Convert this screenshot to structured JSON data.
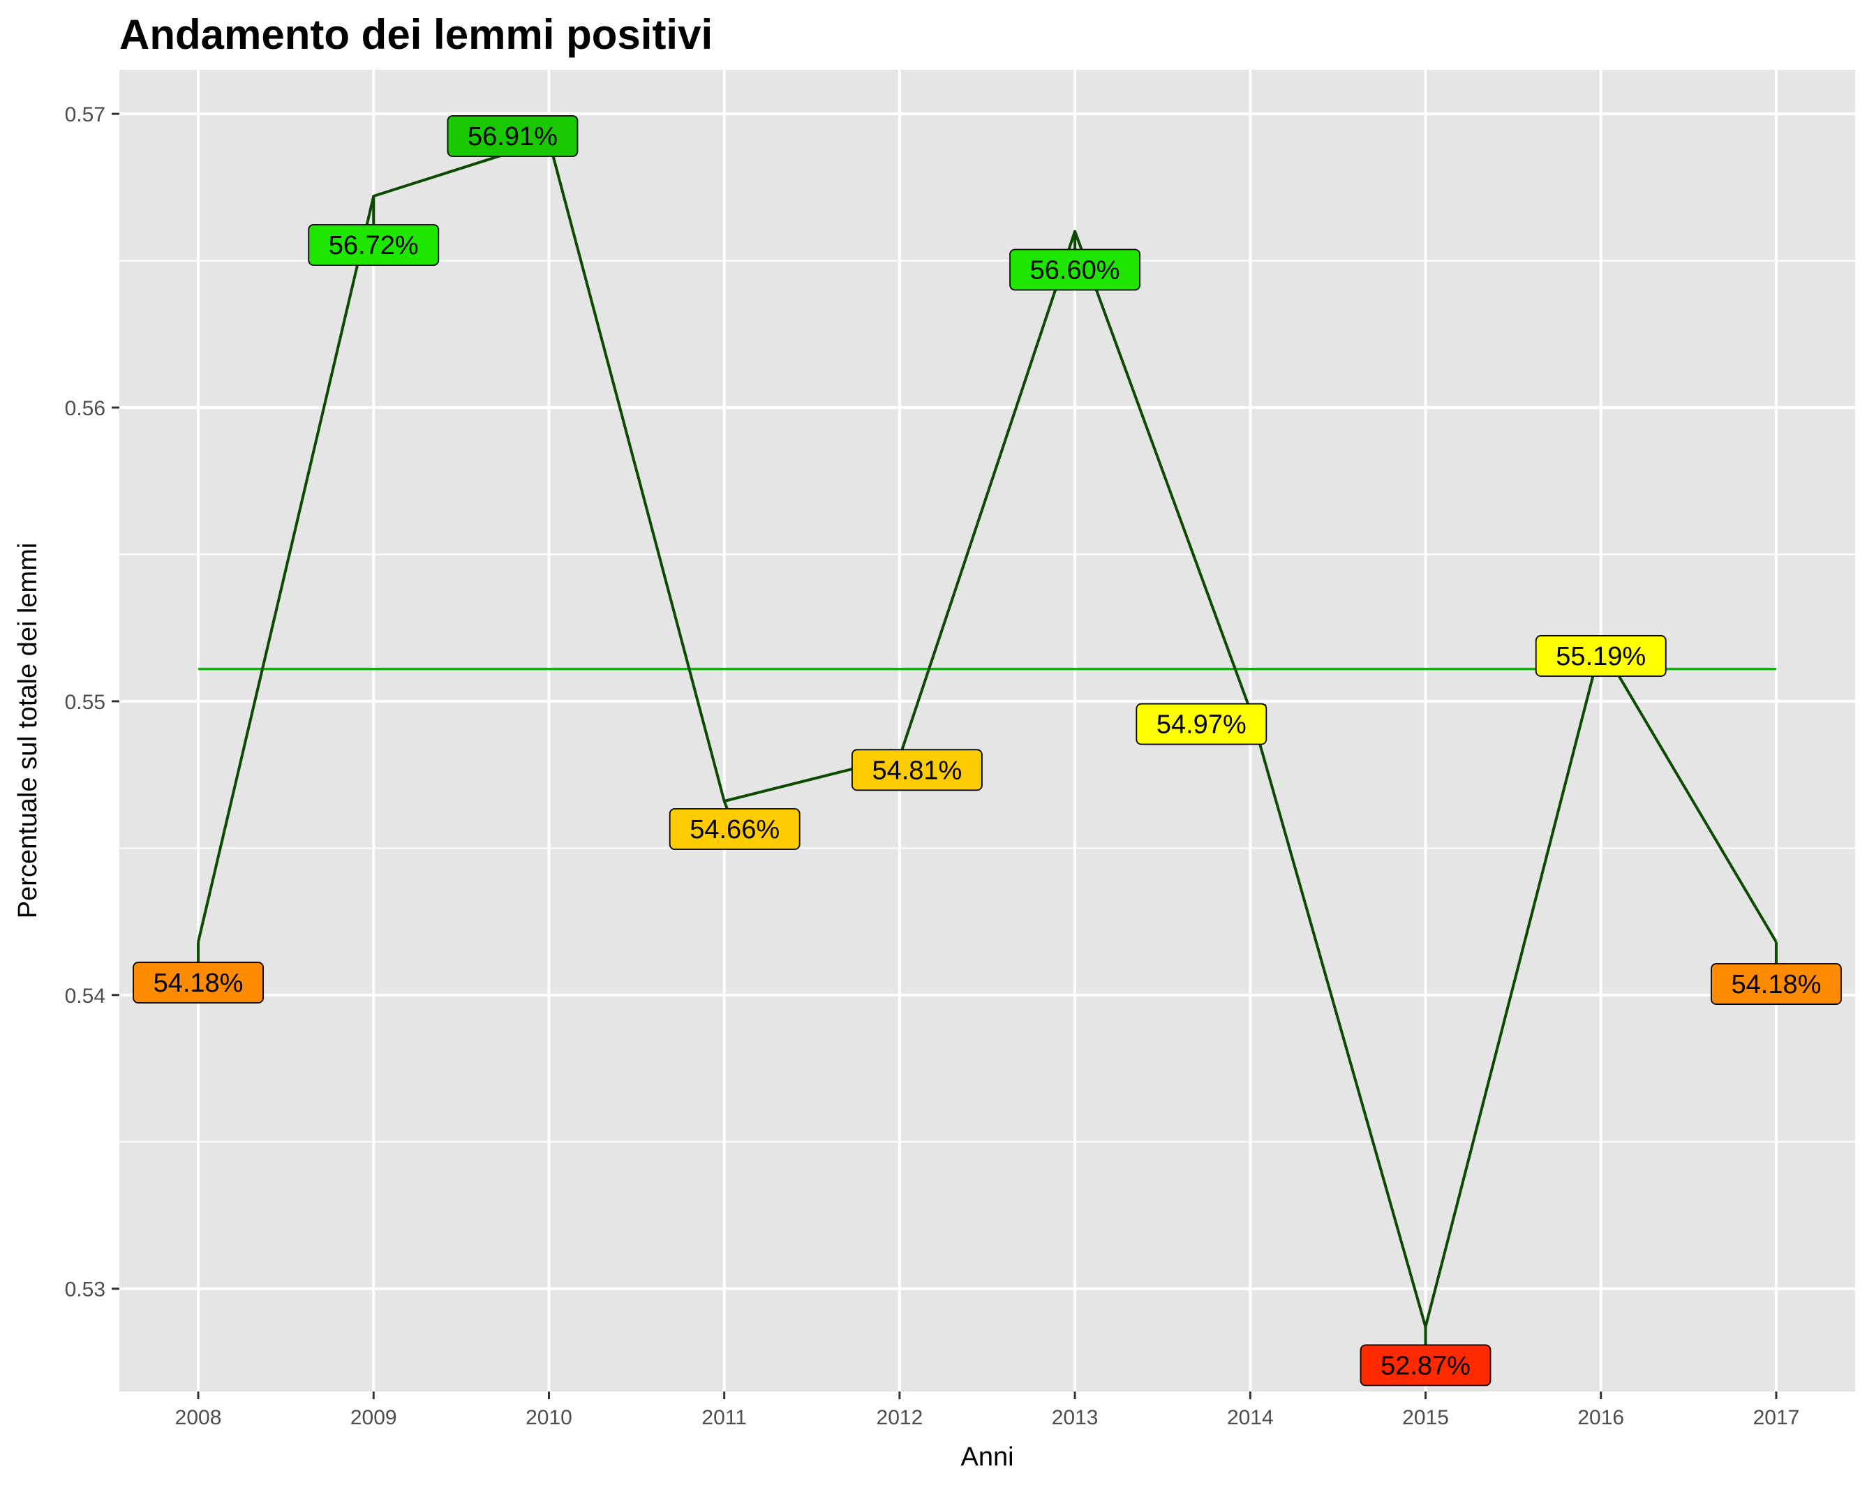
{
  "chart_data": {
    "type": "line",
    "title": "Andamento dei lemmi positivi",
    "xlabel": "Anni",
    "ylabel": "Percentuale sul totale dei lemmi",
    "x": [
      "2008",
      "2009",
      "2010",
      "2011",
      "2012",
      "2013",
      "2014",
      "2015",
      "2016",
      "2017"
    ],
    "series": [
      {
        "values": [
          0.5418,
          0.5672,
          0.5691,
          0.5466,
          0.5481,
          0.566,
          0.5497,
          0.5287,
          0.5519,
          0.5418
        ],
        "color": "#0b4a00"
      }
    ],
    "labels": [
      "54.18%",
      "56.72%",
      "56.91%",
      "54.66%",
      "54.81%",
      "56.60%",
      "54.97%",
      "52.87%",
      "55.19%",
      "54.18%"
    ],
    "label_colors": [
      "#ff8c00",
      "#1ee600",
      "#19c800",
      "#ffcc00",
      "#ffcc00",
      "#1ee600",
      "#ffff00",
      "#ff2a00",
      "#ffff00",
      "#ff8c00"
    ],
    "mean_line": {
      "value": 0.5511,
      "color": "#00bb00"
    },
    "ylim": [
      0.5265,
      0.5715
    ],
    "yticks": [
      0.53,
      0.54,
      0.55,
      0.56,
      0.57
    ],
    "ytick_labels": [
      "0.53",
      "0.54",
      "0.55",
      "0.56",
      "0.57"
    ],
    "grid": true,
    "panel_color": "#e5e5e5",
    "grid_color": "#ffffff",
    "legend": "none"
  }
}
